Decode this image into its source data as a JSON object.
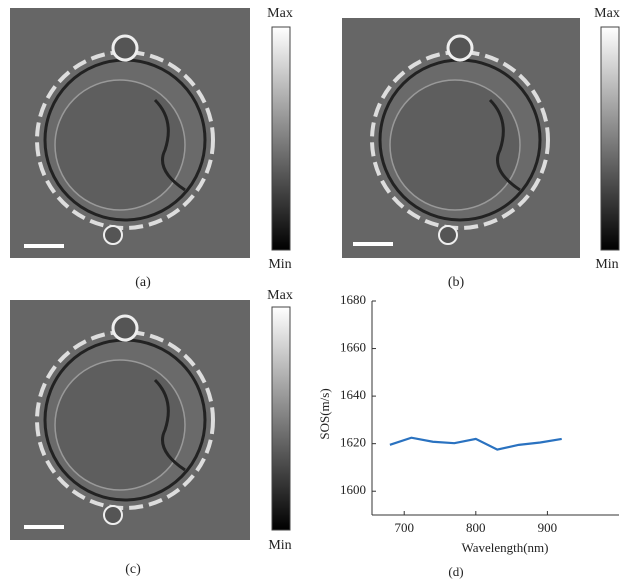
{
  "panels": [
    {
      "label": "(a)",
      "max_label": "Max",
      "min_label": "Min"
    },
    {
      "label": "(b)",
      "max_label": "Max",
      "min_label": "Min"
    },
    {
      "label": "(c)",
      "max_label": "Max",
      "min_label": "Min"
    },
    {
      "label": "(d)"
    }
  ],
  "chart_data": {
    "type": "line",
    "x_label": "Wavelength(nm)",
    "y_label": "SOS(m/s)",
    "x": [
      680,
      710,
      740,
      770,
      800,
      830,
      860,
      890,
      920
    ],
    "series": [
      {
        "color": "#2a72c0",
        "values": [
          1619.5,
          1622.5,
          1620.8,
          1620.2,
          1622,
          1617.5,
          1619.5,
          1620.5,
          1622
        ]
      }
    ],
    "xlim": [
      655,
      1000
    ],
    "ylim": [
      1590,
      1680
    ],
    "xticks": [
      700,
      800,
      900
    ],
    "yticks": [
      1600,
      1620,
      1640,
      1660,
      1680
    ]
  }
}
